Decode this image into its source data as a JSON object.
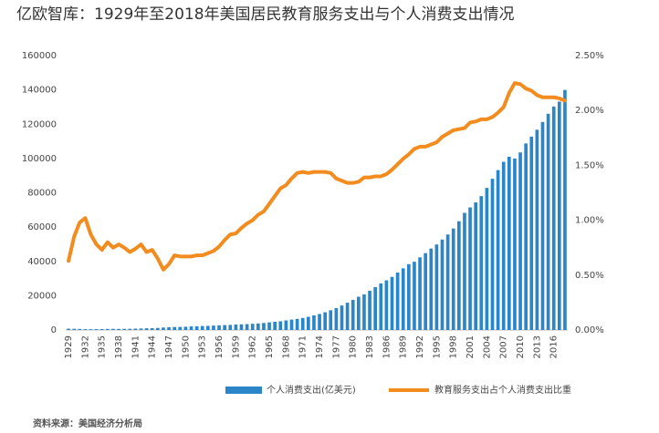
{
  "chart_data": {
    "type": "bar-line",
    "title": "亿欧智库：1929年至2018年美国居民教育服务支出与个人消费支出情况",
    "source": "资料来源：美国经济分析局",
    "categories": [
      "1929",
      null,
      null,
      "1932",
      null,
      null,
      "1935",
      null,
      null,
      "1938",
      null,
      null,
      "1941",
      null,
      null,
      "1944",
      null,
      null,
      "1947",
      null,
      null,
      "1950",
      null,
      null,
      "1953",
      null,
      null,
      "1956",
      null,
      null,
      "1959",
      null,
      null,
      "1962",
      null,
      null,
      "1965",
      null,
      null,
      "1968",
      null,
      null,
      "1971",
      null,
      null,
      "1974",
      null,
      null,
      "1977",
      null,
      null,
      "1980",
      null,
      null,
      "1983",
      null,
      null,
      "1986",
      null,
      null,
      "1989",
      null,
      null,
      "1992",
      null,
      null,
      "1995",
      null,
      null,
      "1998",
      null,
      null,
      "2001",
      null,
      null,
      "2004",
      null,
      null,
      "2007",
      null,
      null,
      "2010",
      null,
      null,
      "2013",
      null,
      null,
      "2016",
      null,
      null
    ],
    "series": [
      {
        "name": "个人消费支出(亿美元)",
        "color": "#2b86c9",
        "kind": "bar",
        "values": [
          774,
          701,
          607,
          487,
          459,
          515,
          559,
          622,
          668,
          643,
          672,
          712,
          810,
          890,
          999,
          1086,
          1200,
          1443,
          1620,
          1750,
          1785,
          1922,
          2085,
          2195,
          2331,
          2400,
          2588,
          2717,
          2869,
          2962,
          3176,
          3312,
          3415,
          3626,
          3820,
          4107,
          4438,
          4809,
          5078,
          5580,
          6051,
          6483,
          7016,
          7702,
          8520,
          9329,
          10338,
          11513,
          12778,
          14276,
          15912,
          17558,
          19395,
          20755,
          22886,
          25011,
          27176,
          28967,
          30970,
          33501,
          35945,
          38355,
          39801,
          42369,
          44836,
          47508,
          49873,
          52736,
          55706,
          59185,
          63428,
          68304,
          71488,
          74392,
          78040,
          82851,
          88190,
          93227,
          98063,
          101045,
          100013,
          103519,
          108789,
          112768,
          116767,
          121312,
          126097,
          130315,
          133200,
          139980
        ]
      },
      {
        "name": "教育服务支出占个人消费支出比重",
        "color": "#f28c1f",
        "kind": "line",
        "axis": "y2",
        "values": [
          0.63,
          0.85,
          0.98,
          1.02,
          0.87,
          0.78,
          0.73,
          0.8,
          0.75,
          0.78,
          0.75,
          0.71,
          0.74,
          0.78,
          0.71,
          0.73,
          0.65,
          0.55,
          0.6,
          0.68,
          0.67,
          0.67,
          0.67,
          0.68,
          0.68,
          0.7,
          0.72,
          0.76,
          0.82,
          0.87,
          0.88,
          0.93,
          0.97,
          1.0,
          1.05,
          1.08,
          1.15,
          1.22,
          1.29,
          1.32,
          1.38,
          1.43,
          1.44,
          1.43,
          1.44,
          1.44,
          1.44,
          1.43,
          1.38,
          1.36,
          1.34,
          1.34,
          1.35,
          1.39,
          1.39,
          1.4,
          1.4,
          1.42,
          1.46,
          1.51,
          1.56,
          1.6,
          1.65,
          1.67,
          1.67,
          1.69,
          1.71,
          1.76,
          1.79,
          1.82,
          1.83,
          1.84,
          1.89,
          1.9,
          1.92,
          1.92,
          1.94,
          1.98,
          2.03,
          2.16,
          2.25,
          2.24,
          2.2,
          2.18,
          2.14,
          2.12,
          2.12,
          2.12,
          2.11,
          2.09
        ]
      }
    ],
    "ylim": [
      0,
      160000
    ],
    "yticks": [
      0,
      20000,
      40000,
      60000,
      80000,
      100000,
      120000,
      140000,
      160000
    ],
    "y2lim": [
      0,
      2.5
    ],
    "y2ticks": [
      {
        "value": 0,
        "label": "0.00%"
      },
      {
        "value": 0.5,
        "label": "0.50%"
      },
      {
        "value": 1,
        "label": "1.00%"
      },
      {
        "value": 1.5,
        "label": "1.50%"
      },
      {
        "value": 2,
        "label": "2.00%"
      },
      {
        "value": 2.5,
        "label": "2.50%"
      }
    ],
    "grid": false
  }
}
